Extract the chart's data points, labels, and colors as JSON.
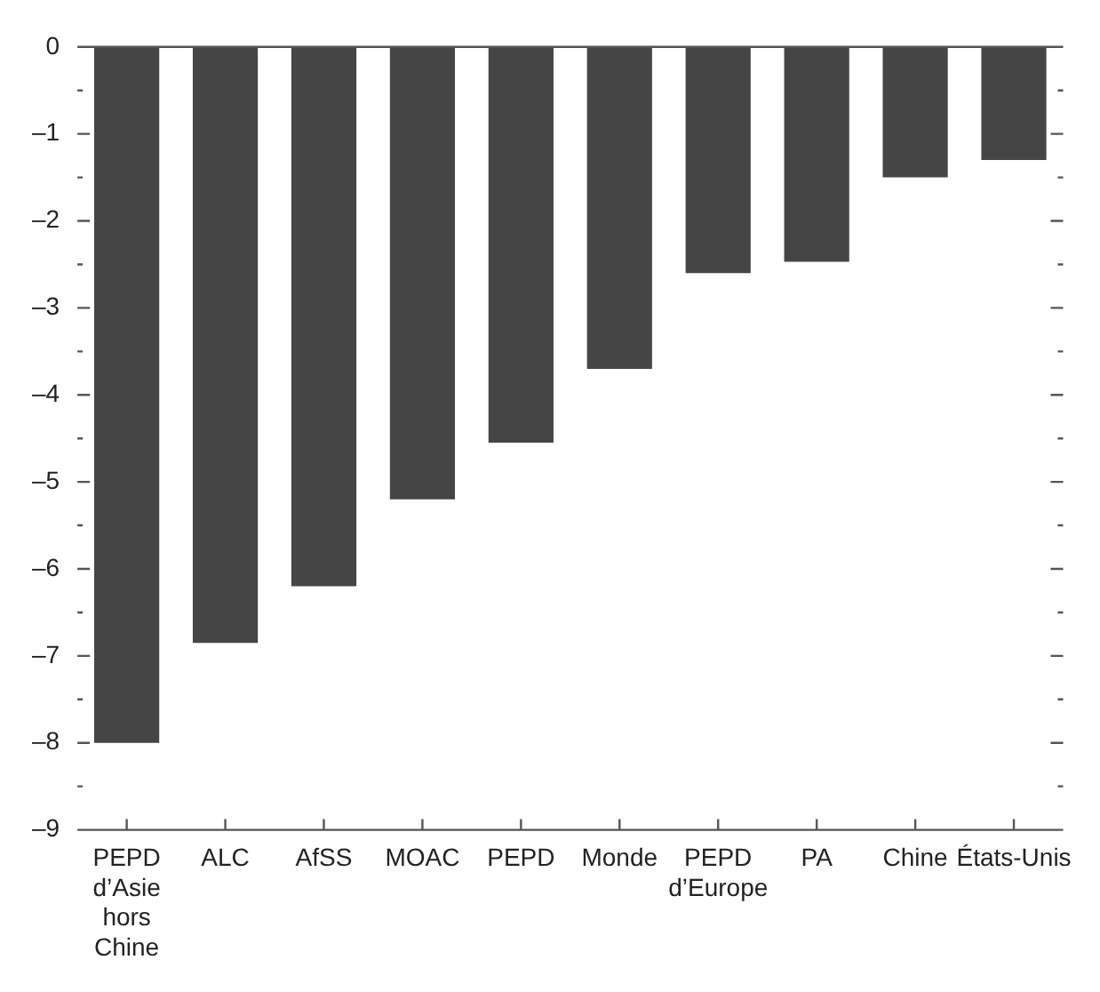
{
  "chart_data": {
    "type": "bar",
    "categories": [
      "PEPD d’Asie hors Chine",
      "ALC",
      "AfSS",
      "MOAC",
      "PEPD",
      "Monde",
      "PEPD d’Europe",
      "PA",
      "Chine",
      "États-Unis"
    ],
    "values": [
      -8.0,
      -6.85,
      -6.2,
      -5.2,
      -4.55,
      -3.7,
      -2.6,
      -2.47,
      -1.5,
      -1.3
    ],
    "color": "#454545",
    "ylim": [
      -9,
      0
    ],
    "yticks": [
      {
        "value": -9,
        "label": "–9"
      },
      {
        "value": -8.5,
        "label": null
      },
      {
        "value": -8,
        "label": "–8"
      },
      {
        "value": -7.5,
        "label": null
      },
      {
        "value": -7,
        "label": "–7"
      },
      {
        "value": -6.5,
        "label": null
      },
      {
        "value": -6,
        "label": "–6"
      },
      {
        "value": -5.5,
        "label": null
      },
      {
        "value": -5,
        "label": "–5"
      },
      {
        "value": -4.5,
        "label": null
      },
      {
        "value": -4,
        "label": "–4"
      },
      {
        "value": -3.5,
        "label": null
      },
      {
        "value": -3,
        "label": "–3"
      },
      {
        "value": -2.5,
        "label": null
      },
      {
        "value": -2,
        "label": "–2"
      },
      {
        "value": -1.5,
        "label": null
      },
      {
        "value": -1,
        "label": "–1"
      },
      {
        "value": -0.5,
        "label": null
      },
      0
    ],
    "grid": false,
    "legend": false
  }
}
